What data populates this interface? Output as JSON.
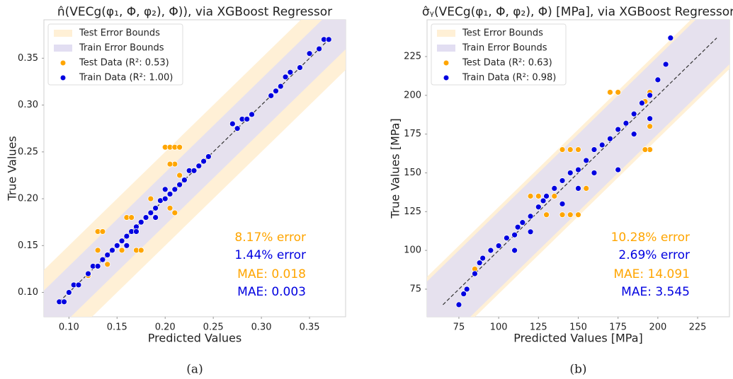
{
  "chart_data": [
    {
      "type": "scatter",
      "title": "n̂(VECg(φ₁, Φ, φ₂), Φ)), via XGBoost Regressor",
      "xlabel": "Predicted Values",
      "ylabel": "True Values",
      "caption": "(a)",
      "xlim": [
        0.074,
        0.3875
      ],
      "ylim": [
        0.074,
        0.391
      ],
      "xticks": [
        {
          "value": 0.1,
          "label": "0.10"
        },
        0.15,
        {
          "value": 0.2,
          "label": "0.20"
        },
        0.25,
        {
          "value": 0.3,
          "label": "0.30"
        },
        0.35
      ],
      "yticks": [
        {
          "value": 0.1,
          "label": "0.10"
        },
        0.15,
        {
          "value": 0.2,
          "label": "0.20"
        },
        0.25,
        {
          "value": 0.3,
          "label": "0.30"
        },
        0.35
      ],
      "legend": "upper left",
      "bands": [
        {
          "name": "Test Error Bounds",
          "color": "#fff0d6",
          "half_width": 0.05
        },
        {
          "name": "Train Error Bounds",
          "color": "#e2def2",
          "half_width": 0.028
        }
      ],
      "series": [
        {
          "name": "Test Data (R²: 0.53)",
          "color": "#ffa500",
          "x": [
            0.2,
            0.205,
            0.21,
            0.215,
            0.21,
            0.205,
            0.215,
            0.13,
            0.135,
            0.16,
            0.165,
            0.155,
            0.17,
            0.175,
            0.21,
            0.205,
            0.12,
            0.14,
            0.185,
            0.13
          ],
          "values": [
            0.255,
            0.255,
            0.255,
            0.255,
            0.237,
            0.237,
            0.225,
            0.165,
            0.165,
            0.18,
            0.18,
            0.145,
            0.145,
            0.145,
            0.185,
            0.19,
            0.118,
            0.13,
            0.2,
            0.145
          ]
        },
        {
          "name": "Train Data (R²: 1.00)",
          "color": "#0000e0",
          "x": [
            0.09,
            0.095,
            0.1,
            0.105,
            0.11,
            0.12,
            0.125,
            0.13,
            0.135,
            0.14,
            0.145,
            0.15,
            0.155,
            0.16,
            0.165,
            0.17,
            0.175,
            0.18,
            0.185,
            0.19,
            0.195,
            0.2,
            0.205,
            0.21,
            0.215,
            0.22,
            0.225,
            0.23,
            0.235,
            0.24,
            0.245,
            0.27,
            0.275,
            0.28,
            0.285,
            0.29,
            0.31,
            0.315,
            0.32,
            0.325,
            0.33,
            0.34,
            0.35,
            0.36,
            0.365,
            0.37,
            0.2,
            0.19,
            0.16,
            0.17
          ],
          "values": [
            0.09,
            0.09,
            0.1,
            0.108,
            0.108,
            0.12,
            0.128,
            0.128,
            0.135,
            0.14,
            0.145,
            0.15,
            0.155,
            0.16,
            0.165,
            0.17,
            0.175,
            0.18,
            0.185,
            0.19,
            0.198,
            0.2,
            0.205,
            0.21,
            0.215,
            0.22,
            0.23,
            0.23,
            0.235,
            0.24,
            0.245,
            0.28,
            0.275,
            0.285,
            0.285,
            0.29,
            0.31,
            0.315,
            0.32,
            0.33,
            0.335,
            0.34,
            0.355,
            0.36,
            0.37,
            0.37,
            0.21,
            0.18,
            0.15,
            0.165
          ]
        }
      ],
      "annotations": [
        {
          "text": "8.17% error",
          "color": "#ffa500"
        },
        {
          "text": "1.44% error",
          "color": "#0000e0"
        },
        {
          "text": "MAE: 0.018",
          "color": "#ffa500"
        },
        {
          "text": "MAE: 0.003",
          "color": "#0000e0"
        }
      ]
    },
    {
      "type": "scatter",
      "title": "σ̂ᵧ(VECg(φ₁, Φ, φ₂), Φ) [MPa], via XGBoost Regressor",
      "xlabel": "Predicted Values [MPa]",
      "ylabel": "True Values [MPa]",
      "caption": "(b)",
      "xlim": [
        55,
        245
      ],
      "ylim": [
        57.2,
        248.7
      ],
      "xticks": [
        75,
        100,
        125,
        150,
        175,
        200,
        225
      ],
      "yticks": [
        75,
        100,
        125,
        150,
        175,
        200,
        225
      ],
      "legend": "upper left",
      "bands": [
        {
          "name": "Test Error Bounds",
          "color": "#fff0d6",
          "half_width": 28
        },
        {
          "name": "Train Error Bounds",
          "color": "#e2def2",
          "half_width": 25
        }
      ],
      "series": [
        {
          "name": "Test Data (R²: 0.63)",
          "color": "#ffa500",
          "x": [
            85,
            120,
            125,
            135,
            130,
            140,
            145,
            150,
            140,
            145,
            150,
            170,
            175,
            195,
            192,
            195,
            192,
            175,
            155,
            195
          ],
          "values": [
            88,
            135,
            135,
            135,
            123,
            123,
            123,
            123,
            165,
            165,
            165,
            202,
            202,
            202,
            196,
            165,
            165,
            152,
            140,
            180
          ]
        },
        {
          "name": "Train Data (R²: 0.98)",
          "color": "#0000e0",
          "x": [
            75,
            78,
            80,
            85,
            88,
            90,
            95,
            100,
            105,
            110,
            112,
            115,
            120,
            125,
            128,
            130,
            135,
            140,
            145,
            150,
            155,
            160,
            165,
            170,
            175,
            180,
            185,
            190,
            195,
            200,
            205,
            208,
            150,
            140,
            160,
            175,
            185,
            195,
            120,
            110
          ],
          "values": [
            65,
            72,
            75,
            85,
            92,
            95,
            100,
            103,
            108,
            110,
            115,
            118,
            122,
            128,
            132,
            135,
            140,
            145,
            150,
            152,
            158,
            165,
            168,
            172,
            178,
            182,
            188,
            195,
            200,
            210,
            220,
            237,
            140,
            130,
            150,
            152,
            175,
            185,
            112,
            100
          ]
        }
      ],
      "annotations": [
        {
          "text": "10.28% error",
          "color": "#ffa500"
        },
        {
          "text": "2.69% error",
          "color": "#0000e0"
        },
        {
          "text": "MAE: 14.091",
          "color": "#ffa500"
        },
        {
          "text": "MAE: 3.545",
          "color": "#0000e0"
        }
      ]
    }
  ]
}
